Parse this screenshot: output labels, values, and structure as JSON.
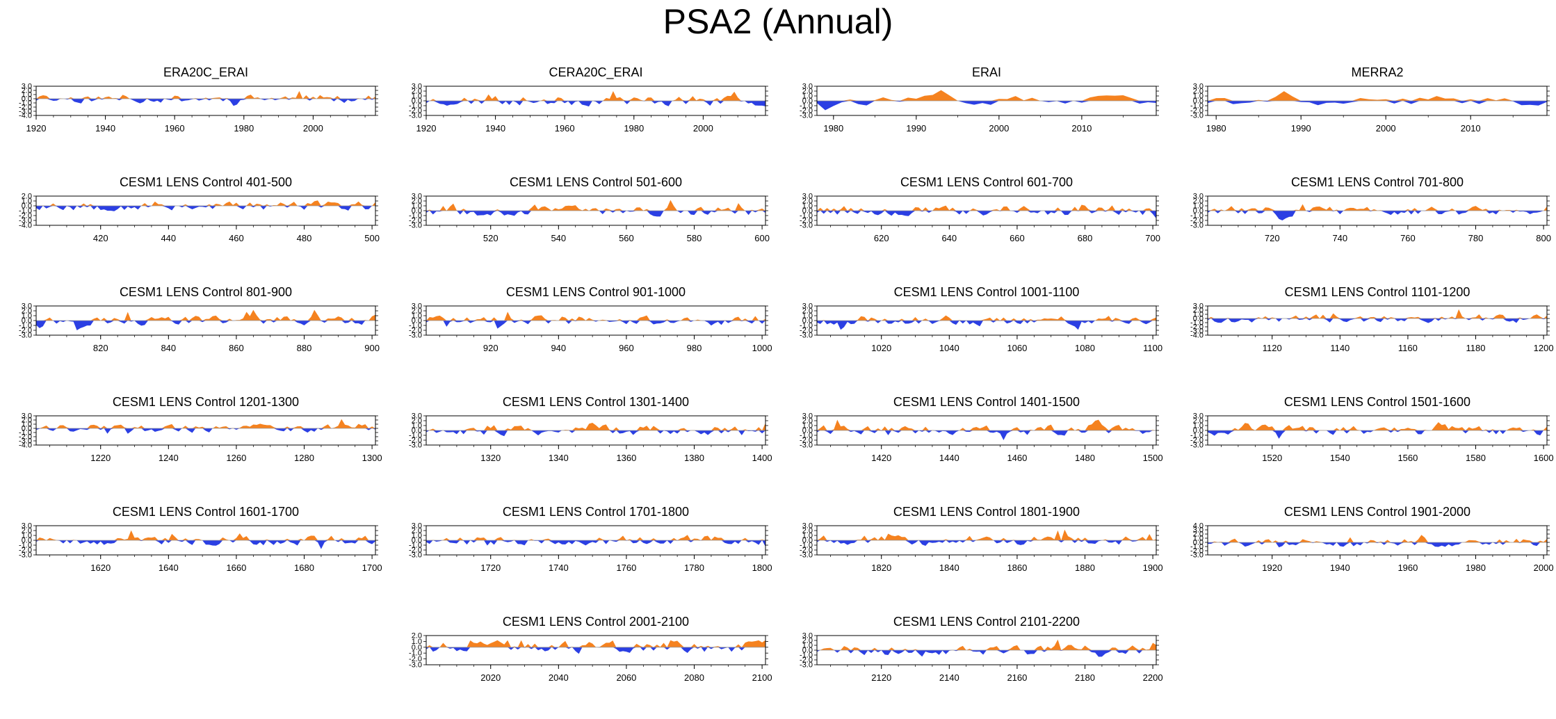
{
  "figure": {
    "title": "PSA2 (Annual)"
  },
  "colors": {
    "positive": "#F5821F",
    "negative": "#2B3FE3",
    "axis": "#000000"
  },
  "chart_data": [
    {
      "type": "area",
      "title": "ERA20C_ERAI",
      "xlim": [
        1920,
        2018
      ],
      "ylim": [
        -4.0,
        3.0
      ],
      "yticks": [
        3.0,
        2.0,
        1.0,
        0.0,
        -1.0,
        -2.0,
        -3.0,
        -4.0
      ],
      "yticklabels": [
        "3.0",
        "2.0",
        "1.0",
        "0.0",
        "-1.0",
        "-2.0",
        "-3.0",
        "-4.0"
      ],
      "xticks": [
        1920,
        1940,
        1960,
        1980,
        2000
      ],
      "xticklabels": [
        "1920",
        "1940",
        "1960",
        "1980",
        "2000"
      ],
      "seed": 11
    },
    {
      "type": "area",
      "title": "CERA20C_ERAI",
      "xlim": [
        1920,
        2018
      ],
      "ylim": [
        -3.0,
        3.0
      ],
      "yticks": [
        3.0,
        2.0,
        1.0,
        0.0,
        -1.0,
        -2.0,
        -3.0
      ],
      "yticklabels": [
        "3.0",
        "2.0",
        "1.0",
        "0.0",
        "-1.0",
        "-2.0",
        "-3.0"
      ],
      "xticks": [
        1920,
        1940,
        1960,
        1980,
        2000
      ],
      "xticklabels": [
        "1920",
        "1940",
        "1960",
        "1980",
        "2000"
      ],
      "seed": 23
    },
    {
      "type": "area",
      "title": "ERAI",
      "xlim": [
        1978,
        2019
      ],
      "ylim": [
        -3.0,
        3.0
      ],
      "yticks": [
        3.0,
        2.0,
        1.0,
        0.0,
        -1.0,
        -2.0,
        -3.0
      ],
      "yticklabels": [
        "3.0",
        "2.0",
        "1.0",
        "0.0",
        "-1.0",
        "-2.0",
        "-3.0"
      ],
      "xticks": [
        1980,
        1990,
        2000,
        2010
      ],
      "xticklabels": [
        "1980",
        "1990",
        "2000",
        "2010"
      ],
      "seed": 37
    },
    {
      "type": "area",
      "title": "MERRA2",
      "xlim": [
        1979,
        2019
      ],
      "ylim": [
        -3.0,
        3.0
      ],
      "yticks": [
        3.0,
        2.0,
        1.0,
        0.0,
        -1.0,
        -2.0,
        -3.0
      ],
      "yticklabels": [
        "3.0",
        "2.0",
        "1.0",
        "0.0",
        "-1.0",
        "-2.0",
        "-3.0"
      ],
      "xticks": [
        1980,
        1990,
        2000,
        2010
      ],
      "xticklabels": [
        "1980",
        "1990",
        "2000",
        "2010"
      ],
      "seed": 41
    },
    {
      "type": "area",
      "title": "CESM1 LENS Control 401-500",
      "xlim": [
        401,
        501
      ],
      "ylim": [
        -4.0,
        2.0
      ],
      "yticks": [
        2.0,
        1.0,
        0.0,
        -1.0,
        -2.0,
        -3.0,
        -4.0
      ],
      "yticklabels": [
        "2.0",
        "1.0",
        "0.0",
        "-1.0",
        "-2.0",
        "-3.0",
        "-4.0"
      ],
      "xticks": [
        420,
        440,
        460,
        480,
        500
      ],
      "xticklabels": [
        "420",
        "440",
        "460",
        "480",
        "500"
      ],
      "seed": 53
    },
    {
      "type": "area",
      "title": "CESM1 LENS Control 501-600",
      "xlim": [
        501,
        601
      ],
      "ylim": [
        -3.0,
        3.0
      ],
      "yticks": [
        3.0,
        2.0,
        1.0,
        0.0,
        -1.0,
        -2.0,
        -3.0
      ],
      "yticklabels": [
        "3.0",
        "2.0",
        "1.0",
        "0.0",
        "-1.0",
        "-2.0",
        "-3.0"
      ],
      "xticks": [
        520,
        540,
        560,
        580,
        600
      ],
      "xticklabels": [
        "520",
        "540",
        "560",
        "580",
        "600"
      ],
      "seed": 67
    },
    {
      "type": "area",
      "title": "CESM1 LENS Control 601-700",
      "xlim": [
        601,
        701
      ],
      "ylim": [
        -3.0,
        3.0
      ],
      "yticks": [
        3.0,
        2.0,
        1.0,
        0.0,
        -1.0,
        -2.0,
        -3.0
      ],
      "yticklabels": [
        "3.0",
        "2.0",
        "1.0",
        "0.0",
        "-1.0",
        "-2.0",
        "-3.0"
      ],
      "xticks": [
        620,
        640,
        660,
        680,
        700
      ],
      "xticklabels": [
        "620",
        "640",
        "660",
        "680",
        "700"
      ],
      "seed": 79
    },
    {
      "type": "area",
      "title": "CESM1 LENS Control 701-800",
      "xlim": [
        701,
        801
      ],
      "ylim": [
        -3.0,
        3.0
      ],
      "yticks": [
        3.0,
        2.0,
        1.0,
        0.0,
        -1.0,
        -2.0,
        -3.0
      ],
      "yticklabels": [
        "3.0",
        "2.0",
        "1.0",
        "0.0",
        "-1.0",
        "-2.0",
        "-3.0"
      ],
      "xticks": [
        720,
        740,
        760,
        780,
        800
      ],
      "xticklabels": [
        "720",
        "740",
        "760",
        "780",
        "800"
      ],
      "seed": 83
    },
    {
      "type": "area",
      "title": "CESM1 LENS Control 801-900",
      "xlim": [
        801,
        901
      ],
      "ylim": [
        -3.0,
        3.0
      ],
      "yticks": [
        3.0,
        2.0,
        1.0,
        0.0,
        -1.0,
        -2.0,
        -3.0
      ],
      "yticklabels": [
        "3.0",
        "2.0",
        "1.0",
        "0.0",
        "-1.0",
        "-2.0",
        "-3.0"
      ],
      "xticks": [
        820,
        840,
        860,
        880,
        900
      ],
      "xticklabels": [
        "820",
        "840",
        "860",
        "880",
        "900"
      ],
      "seed": 97
    },
    {
      "type": "area",
      "title": "CESM1 LENS Control 901-1000",
      "xlim": [
        901,
        1001
      ],
      "ylim": [
        -3.0,
        3.0
      ],
      "yticks": [
        3.0,
        2.0,
        1.0,
        0.0,
        -1.0,
        -2.0,
        -3.0
      ],
      "yticklabels": [
        "3.0",
        "2.0",
        "1.0",
        "0.0",
        "-1.0",
        "-2.0",
        "-3.0"
      ],
      "xticks": [
        920,
        940,
        960,
        980,
        1000
      ],
      "xticklabels": [
        "920",
        "940",
        "960",
        "980",
        "1000"
      ],
      "seed": 101
    },
    {
      "type": "area",
      "title": "CESM1 LENS Control 1001-1100",
      "xlim": [
        1001,
        1101
      ],
      "ylim": [
        -3.0,
        3.0
      ],
      "yticks": [
        3.0,
        2.0,
        1.0,
        0.0,
        -1.0,
        -2.0,
        -3.0
      ],
      "yticklabels": [
        "3.0",
        "2.0",
        "1.0",
        "0.0",
        "-1.0",
        "-2.0",
        "-3.0"
      ],
      "xticks": [
        1020,
        1040,
        1060,
        1080,
        1100
      ],
      "xticklabels": [
        "1020",
        "1040",
        "1060",
        "1080",
        "1100"
      ],
      "seed": 113
    },
    {
      "type": "area",
      "title": "CESM1 LENS Control 1101-1200",
      "xlim": [
        1101,
        1201
      ],
      "ylim": [
        -4.0,
        3.0
      ],
      "yticks": [
        3.0,
        2.0,
        1.0,
        0.0,
        -1.0,
        -2.0,
        -3.0,
        -4.0
      ],
      "yticklabels": [
        "3.0",
        "2.0",
        "1.0",
        "0.0",
        "-1.0",
        "-2.0",
        "-3.0",
        "-4.0"
      ],
      "xticks": [
        1120,
        1140,
        1160,
        1180,
        1200
      ],
      "xticklabels": [
        "1120",
        "1140",
        "1160",
        "1180",
        "1200"
      ],
      "seed": 127
    },
    {
      "type": "area",
      "title": "CESM1 LENS Control 1201-1300",
      "xlim": [
        1201,
        1301
      ],
      "ylim": [
        -4.0,
        3.0
      ],
      "yticks": [
        3.0,
        2.0,
        1.0,
        0.0,
        -1.0,
        -2.0,
        -3.0,
        -4.0
      ],
      "yticklabels": [
        "3.0",
        "2.0",
        "1.0",
        "0.0",
        "-1.0",
        "-2.0",
        "-3.0",
        "-4.0"
      ],
      "xticks": [
        1220,
        1240,
        1260,
        1280,
        1300
      ],
      "xticklabels": [
        "1220",
        "1240",
        "1260",
        "1280",
        "1300"
      ],
      "seed": 131
    },
    {
      "type": "area",
      "title": "CESM1 LENS Control 1301-1400",
      "xlim": [
        1301,
        1401
      ],
      "ylim": [
        -3.0,
        3.0
      ],
      "yticks": [
        3.0,
        2.0,
        1.0,
        0.0,
        -1.0,
        -2.0,
        -3.0
      ],
      "yticklabels": [
        "3.0",
        "2.0",
        "1.0",
        "0.0",
        "-1.0",
        "-2.0",
        "-3.0"
      ],
      "xticks": [
        1320,
        1340,
        1360,
        1380,
        1400
      ],
      "xticklabels": [
        "1320",
        "1340",
        "1360",
        "1380",
        "1400"
      ],
      "seed": 137
    },
    {
      "type": "area",
      "title": "CESM1 LENS Control 1401-1500",
      "xlim": [
        1401,
        1501
      ],
      "ylim": [
        -3.0,
        3.0
      ],
      "yticks": [
        3.0,
        2.0,
        1.0,
        0.0,
        -1.0,
        -2.0,
        -3.0
      ],
      "yticklabels": [
        "3.0",
        "2.0",
        "1.0",
        "0.0",
        "-1.0",
        "-2.0",
        "-3.0"
      ],
      "xticks": [
        1420,
        1440,
        1460,
        1480,
        1500
      ],
      "xticklabels": [
        "1420",
        "1440",
        "1460",
        "1480",
        "1500"
      ],
      "seed": 149
    },
    {
      "type": "area",
      "title": "CESM1 LENS Control 1501-1600",
      "xlim": [
        1501,
        1601
      ],
      "ylim": [
        -3.0,
        3.0
      ],
      "yticks": [
        3.0,
        2.0,
        1.0,
        0.0,
        -1.0,
        -2.0,
        -3.0
      ],
      "yticklabels": [
        "3.0",
        "2.0",
        "1.0",
        "0.0",
        "-1.0",
        "-2.0",
        "-3.0"
      ],
      "xticks": [
        1520,
        1540,
        1560,
        1580,
        1600
      ],
      "xticklabels": [
        "1520",
        "1540",
        "1560",
        "1580",
        "1600"
      ],
      "seed": 151
    },
    {
      "type": "area",
      "title": "CESM1 LENS Control 1601-1700",
      "xlim": [
        1601,
        1701
      ],
      "ylim": [
        -3.0,
        3.0
      ],
      "yticks": [
        3.0,
        2.0,
        1.0,
        0.0,
        -1.0,
        -2.0,
        -3.0
      ],
      "yticklabels": [
        "3.0",
        "2.0",
        "1.0",
        "0.0",
        "-1.0",
        "-2.0",
        "-3.0"
      ],
      "xticks": [
        1620,
        1640,
        1660,
        1680,
        1700
      ],
      "xticklabels": [
        "1620",
        "1640",
        "1660",
        "1680",
        "1700"
      ],
      "seed": 163
    },
    {
      "type": "area",
      "title": "CESM1 LENS Control 1701-1800",
      "xlim": [
        1701,
        1801
      ],
      "ylim": [
        -3.0,
        3.0
      ],
      "yticks": [
        3.0,
        2.0,
        1.0,
        0.0,
        -1.0,
        -2.0,
        -3.0
      ],
      "yticklabels": [
        "3.0",
        "2.0",
        "1.0",
        "0.0",
        "-1.0",
        "-2.0",
        "-3.0"
      ],
      "xticks": [
        1720,
        1740,
        1760,
        1780,
        1800
      ],
      "xticklabels": [
        "1720",
        "1740",
        "1760",
        "1780",
        "1800"
      ],
      "seed": 167
    },
    {
      "type": "area",
      "title": "CESM1 LENS Control 1801-1900",
      "xlim": [
        1801,
        1901
      ],
      "ylim": [
        -3.0,
        3.0
      ],
      "yticks": [
        3.0,
        2.0,
        1.0,
        0.0,
        -1.0,
        -2.0,
        -3.0
      ],
      "yticklabels": [
        "3.0",
        "2.0",
        "1.0",
        "0.0",
        "-1.0",
        "-2.0",
        "-3.0"
      ],
      "xticks": [
        1820,
        1840,
        1860,
        1880,
        1900
      ],
      "xticklabels": [
        "1820",
        "1840",
        "1860",
        "1880",
        "1900"
      ],
      "seed": 173
    },
    {
      "type": "area",
      "title": "CESM1 LENS Control 1901-2000",
      "xlim": [
        1901,
        2001
      ],
      "ylim": [
        -3.0,
        4.0
      ],
      "yticks": [
        4.0,
        3.0,
        2.0,
        1.0,
        0.0,
        -1.0,
        -2.0,
        -3.0
      ],
      "yticklabels": [
        "4.0",
        "3.0",
        "2.0",
        "1.0",
        "0.0",
        "-1.0",
        "-2.0",
        "-3.0"
      ],
      "xticks": [
        1920,
        1940,
        1960,
        1980,
        2000
      ],
      "xticklabels": [
        "1920",
        "1940",
        "1960",
        "1980",
        "2000"
      ],
      "seed": 179
    },
    {
      "type": "area",
      "title": "CESM1 LENS Control 2001-2100",
      "xlim": [
        2001,
        2101
      ],
      "ylim": [
        -3.0,
        2.0
      ],
      "yticks": [
        2.0,
        1.0,
        0.0,
        -1.0,
        -2.0,
        -3.0
      ],
      "yticklabels": [
        "2.0",
        "1.0",
        "0.0",
        "-1.0",
        "-2.0",
        "-3.0"
      ],
      "xticks": [
        2020,
        2040,
        2060,
        2080,
        2100
      ],
      "xticklabels": [
        "2020",
        "2040",
        "2060",
        "2080",
        "2100"
      ],
      "seed": 181
    },
    {
      "type": "area",
      "title": "CESM1 LENS Control 2101-2200",
      "xlim": [
        2101,
        2201
      ],
      "ylim": [
        -3.0,
        3.0
      ],
      "yticks": [
        3.0,
        2.0,
        1.0,
        0.0,
        -1.0,
        -2.0,
        -3.0
      ],
      "yticklabels": [
        "3.0",
        "2.0",
        "1.0",
        "0.0",
        "-1.0",
        "-2.0",
        "-3.0"
      ],
      "xticks": [
        2120,
        2140,
        2160,
        2180,
        2200
      ],
      "xticklabels": [
        "2120",
        "2140",
        "2160",
        "2180",
        "2200"
      ],
      "seed": 191
    }
  ]
}
